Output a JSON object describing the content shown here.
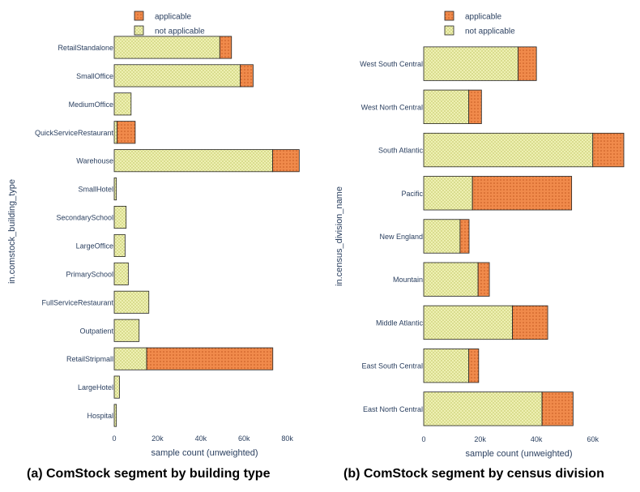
{
  "colors": {
    "applicable": "#f08a4b",
    "not_applicable": "#eef0b3",
    "axis": "#2a3f5f",
    "outline": "#222222"
  },
  "captions": {
    "a": "(a) ComStock segment by building type",
    "b": "(b) ComStock segment by census division"
  },
  "chart_data": [
    {
      "type": "bar",
      "orientation": "horizontal",
      "stacked": true,
      "ylabel": "in.comstock_building_type",
      "xlabel": "sample count (unweighted)",
      "xlim": [
        0,
        85000
      ],
      "xticks": [
        0,
        20000,
        40000,
        60000,
        80000
      ],
      "xtick_labels": [
        "0",
        "20k",
        "40k",
        "60k",
        "80k"
      ],
      "legend_position": "top-left",
      "categories": [
        "RetailStandalone",
        "SmallOffice",
        "MediumOffice",
        "QuickServiceRestaurant",
        "Warehouse",
        "SmallHotel",
        "SecondarySchool",
        "LargeOffice",
        "PrimarySchool",
        "FullServiceRestaurant",
        "Outpatient",
        "RetailStripmall",
        "LargeHotel",
        "Hospital"
      ],
      "series": [
        {
          "name": "not applicable",
          "values": [
            48800,
            58200,
            7800,
            1300,
            73200,
            1000,
            5500,
            5000,
            6500,
            16000,
            11500,
            15000,
            2400,
            1000
          ]
        },
        {
          "name": "applicable",
          "values": [
            5400,
            6000,
            0,
            8400,
            12300,
            0,
            0,
            0,
            0,
            0,
            0,
            58300,
            0,
            0
          ]
        }
      ]
    },
    {
      "type": "bar",
      "orientation": "horizontal",
      "stacked": true,
      "ylabel": "in.census_division_name",
      "xlabel": "sample count (unweighted)",
      "xlim": [
        0,
        71000
      ],
      "xticks": [
        0,
        20000,
        40000,
        60000
      ],
      "xtick_labels": [
        "0",
        "20k",
        "40k",
        "60k"
      ],
      "legend_position": "top-left",
      "categories": [
        "West South Central",
        "West North Central",
        "South Atlantic",
        "Pacific",
        "New England",
        "Mountain",
        "Middle Atlantic",
        "East South Central",
        "East North Central"
      ],
      "series": [
        {
          "name": "not applicable",
          "values": [
            33500,
            16000,
            60000,
            17300,
            12900,
            19300,
            31500,
            16000,
            42000
          ]
        },
        {
          "name": "applicable",
          "values": [
            6500,
            4500,
            11000,
            35200,
            3200,
            4000,
            12500,
            3500,
            11000
          ]
        }
      ]
    }
  ],
  "legend": {
    "applicable": "applicable",
    "not_applicable": "not applicable"
  }
}
